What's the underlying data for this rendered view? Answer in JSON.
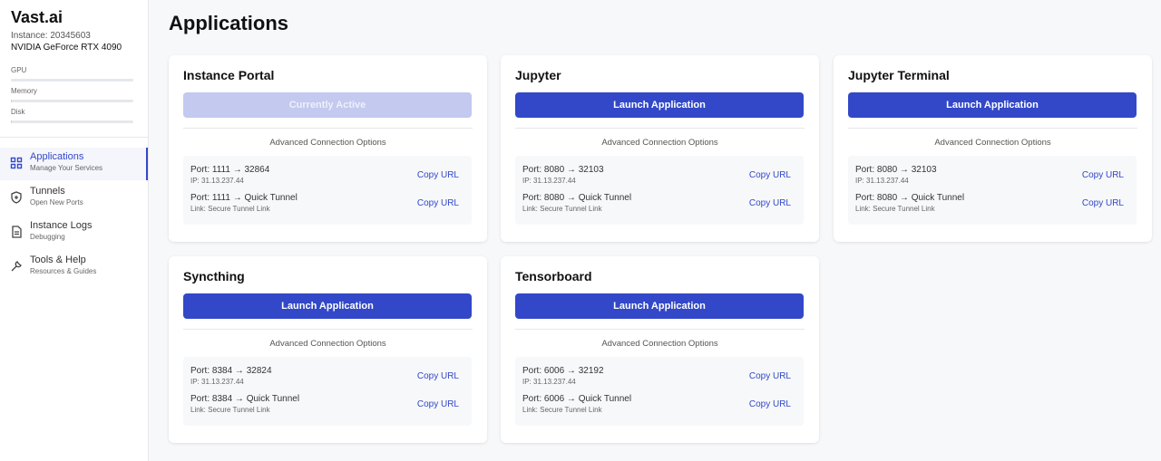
{
  "sidebar": {
    "brand": "Vast.ai",
    "instance": "Instance: 20345603",
    "gpu_name": "NVIDIA GeForce RTX 4090",
    "meters": [
      {
        "label": "GPU",
        "percent": 0
      },
      {
        "label": "Memory",
        "percent": 1
      },
      {
        "label": "Disk",
        "percent": 1
      }
    ],
    "nav": [
      {
        "title": "Applications",
        "sub": "Manage Your Services",
        "icon": "grid-icon",
        "active": true
      },
      {
        "title": "Tunnels",
        "sub": "Open New Ports",
        "icon": "shield-plus-icon"
      },
      {
        "title": "Instance Logs",
        "sub": "Debugging",
        "icon": "document-icon"
      },
      {
        "title": "Tools & Help",
        "sub": "Resources & Guides",
        "icon": "wrench-icon"
      }
    ]
  },
  "main": {
    "title": "Applications",
    "adv_label": "Advanced Connection Options",
    "copy_label": "Copy URL",
    "cards": [
      {
        "title": "Instance Portal",
        "button": "Currently Active",
        "disabled": true,
        "rows": [
          {
            "port": "Port: 1111 → 32864",
            "detail": "IP: 31.13.237.44"
          },
          {
            "port": "Port: 1111 → Quick Tunnel",
            "detail": "Link: Secure Tunnel Link"
          }
        ]
      },
      {
        "title": "Jupyter",
        "button": "Launch Application",
        "rows": [
          {
            "port": "Port: 8080 → 32103",
            "detail": "IP: 31.13.237.44"
          },
          {
            "port": "Port: 8080 → Quick Tunnel",
            "detail": "Link: Secure Tunnel Link"
          }
        ]
      },
      {
        "title": "Jupyter Terminal",
        "button": "Launch Application",
        "rows": [
          {
            "port": "Port: 8080 → 32103",
            "detail": "IP: 31.13.237.44"
          },
          {
            "port": "Port: 8080 → Quick Tunnel",
            "detail": "Link: Secure Tunnel Link"
          }
        ]
      },
      {
        "title": "Syncthing",
        "button": "Launch Application",
        "rows": [
          {
            "port": "Port: 8384 → 32824",
            "detail": "IP: 31.13.237.44"
          },
          {
            "port": "Port: 8384 → Quick Tunnel",
            "detail": "Link: Secure Tunnel Link"
          }
        ]
      },
      {
        "title": "Tensorboard",
        "button": "Launch Application",
        "rows": [
          {
            "port": "Port: 6006 → 32192",
            "detail": "IP: 31.13.237.44"
          },
          {
            "port": "Port: 6006 → Quick Tunnel",
            "detail": "Link: Secure Tunnel Link"
          }
        ]
      }
    ]
  },
  "colors": {
    "accent": "#3248c8",
    "disabled": "#c3c9ef"
  }
}
